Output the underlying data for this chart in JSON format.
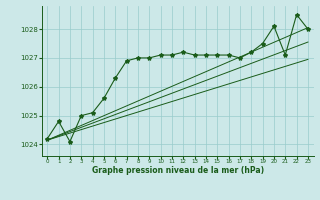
{
  "title": "Graphe pression niveau de la mer (hPa)",
  "bg_color": "#cce8e8",
  "grid_color": "#99cccc",
  "line_color": "#1a5c1a",
  "x_min": -0.5,
  "x_max": 23.5,
  "y_min": 1023.6,
  "y_max": 1028.8,
  "hours": [
    0,
    1,
    2,
    3,
    4,
    5,
    6,
    7,
    8,
    9,
    10,
    11,
    12,
    13,
    14,
    15,
    16,
    17,
    18,
    19,
    20,
    21,
    22,
    23
  ],
  "pressure": [
    1024.2,
    1024.8,
    1024.1,
    1025.0,
    1025.1,
    1025.6,
    1026.3,
    1026.9,
    1027.0,
    1027.0,
    1027.1,
    1027.1,
    1027.2,
    1027.1,
    1027.1,
    1027.1,
    1027.1,
    1027.0,
    1027.2,
    1027.5,
    1028.1,
    1027.1,
    1028.5,
    1028.0
  ],
  "line1_x": [
    0,
    23
  ],
  "line1_y": [
    1024.15,
    1026.95
  ],
  "line2_x": [
    0,
    23
  ],
  "line2_y": [
    1024.15,
    1027.55
  ],
  "line3_x": [
    0,
    23
  ],
  "line3_y": [
    1024.15,
    1028.05
  ],
  "yticks": [
    1024,
    1025,
    1026,
    1027,
    1028
  ],
  "xticks": [
    0,
    1,
    2,
    3,
    4,
    5,
    6,
    7,
    8,
    9,
    10,
    11,
    12,
    13,
    14,
    15,
    16,
    17,
    18,
    19,
    20,
    21,
    22,
    23
  ]
}
